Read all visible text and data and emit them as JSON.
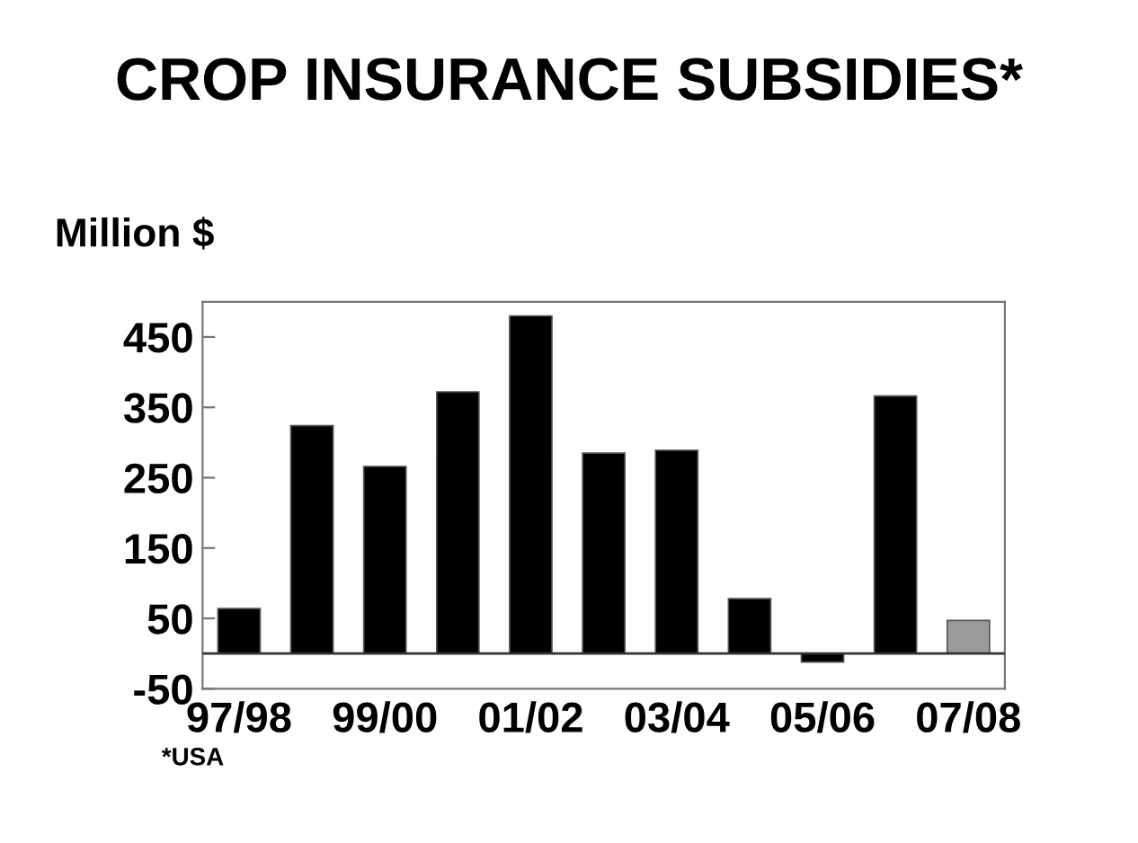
{
  "chart_data": {
    "type": "bar",
    "title": "CROP INSURANCE SUBSIDIES*",
    "ylabel": "Million $",
    "categories": [
      "97/98",
      null,
      "99/00",
      null,
      "01/02",
      null,
      "03/04",
      null,
      "05/06",
      null,
      "07/08"
    ],
    "values": [
      64,
      324,
      266,
      372,
      480,
      285,
      289,
      78,
      -12,
      366,
      47
    ],
    "colors": [
      "#000000",
      "#000000",
      "#000000",
      "#000000",
      "#000000",
      "#000000",
      "#000000",
      "#000000",
      "#000000",
      "#000000",
      "#9a9a9a"
    ],
    "ylim": [
      -50,
      500
    ],
    "yticks": [
      -50,
      50,
      150,
      250,
      350,
      450
    ],
    "grid": false,
    "legend": false,
    "annotations": [
      "*USA"
    ]
  }
}
